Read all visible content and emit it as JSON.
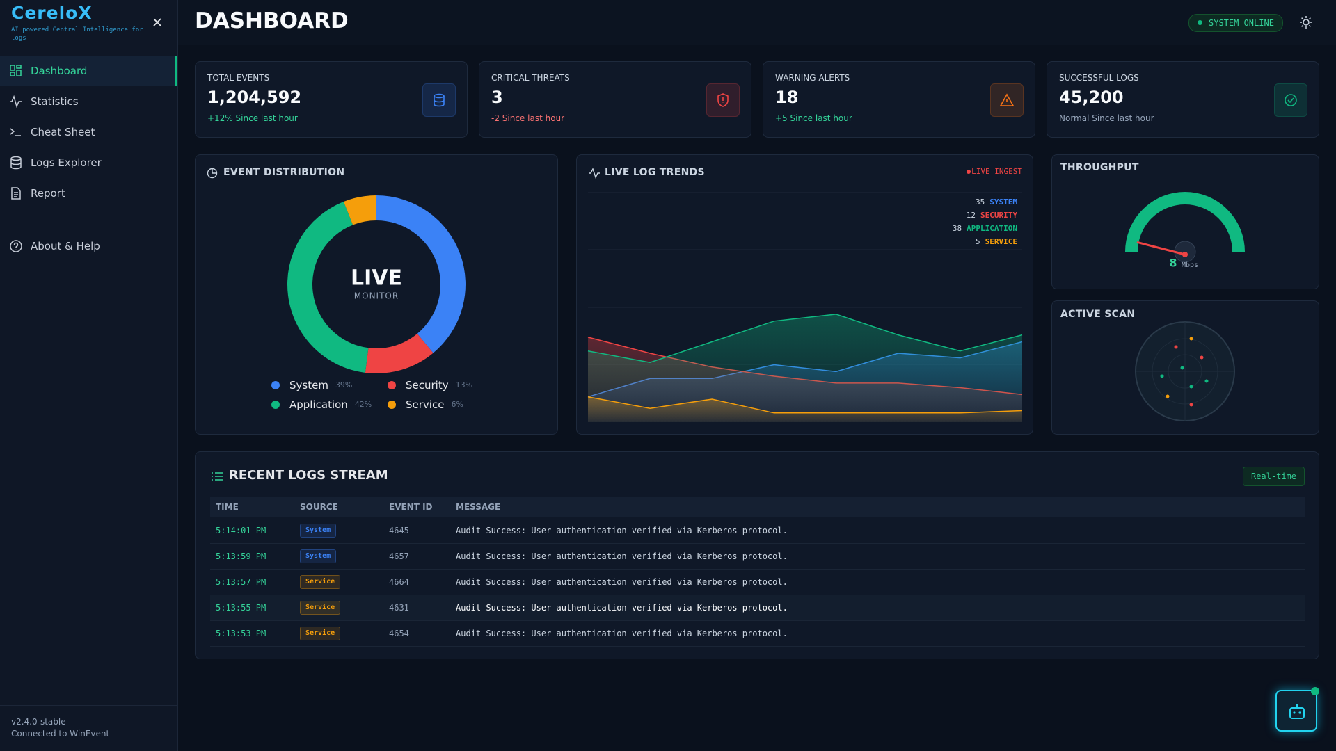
{
  "sidebar": {
    "brand": "CereloX",
    "tagline": "AI powered Central Intelligence for logs",
    "nav": [
      "Dashboard",
      "Statistics",
      "Cheat Sheet",
      "Logs Explorer",
      "Report"
    ],
    "help": "About & Help",
    "version": "v2.4.0-stable",
    "connection": "Connected to WinEvent"
  },
  "header": {
    "title": "DASHBOARD",
    "status": "SYSTEM ONLINE"
  },
  "cards": [
    {
      "label": "TOTAL EVENTS",
      "value": "1,204,592",
      "note": "+12% Since last hour",
      "note_color": "#34d399",
      "color": "#3b82f6"
    },
    {
      "label": "CRITICAL THREATS",
      "value": "3",
      "note": "-2 Since last hour",
      "note_color": "#f87171",
      "color": "#ef4444"
    },
    {
      "label": "WARNING ALERTS",
      "value": "18",
      "note": "+5 Since last hour",
      "note_color": "#34d399",
      "color": "#f97316"
    },
    {
      "label": "SUCCESSFUL LOGS",
      "value": "45,200",
      "note": "Normal Since last hour",
      "note_color": "#94a3b8",
      "color": "#10b981"
    }
  ],
  "event_distribution": {
    "type": "pie",
    "title": "EVENT DISTRIBUTION",
    "center": "LIVE",
    "center_sub": "MONITOR",
    "categories": [
      "System",
      "Security",
      "Application",
      "Service"
    ],
    "values": [
      39,
      13,
      42,
      6
    ],
    "value_labels": [
      "39%",
      "13%",
      "42%",
      "6%"
    ],
    "colors": [
      "#3b82f6",
      "#ef4444",
      "#10b981",
      "#f59e0b"
    ]
  },
  "live_trends": {
    "type": "area",
    "title": "LIVE LOG TRENDS",
    "badge": "LIVE INGEST",
    "categories": [
      null,
      null,
      null,
      null,
      null,
      null,
      null,
      null
    ],
    "ylim": [
      0,
      100
    ],
    "series": [
      {
        "name": "SYSTEM",
        "color": "#3b82f6",
        "values": [
          11,
          19,
          19,
          25,
          22,
          30,
          28,
          35
        ]
      },
      {
        "name": "SECURITY",
        "color": "#ef4444",
        "values": [
          37,
          30,
          24,
          20,
          17,
          17,
          15,
          12
        ]
      },
      {
        "name": "APPLICATION",
        "color": "#10b981",
        "values": [
          31,
          26,
          35,
          44,
          47,
          38,
          31,
          38
        ]
      },
      {
        "name": "SERVICE",
        "color": "#f59e0b",
        "values": [
          11,
          6,
          10,
          4,
          4,
          4,
          4,
          5
        ]
      }
    ]
  },
  "throughput": {
    "type": "gauge",
    "title": "THROUGHPUT",
    "value": 8,
    "unit": "Mbps",
    "ylim": [
      0,
      100
    ]
  },
  "active_scan": {
    "title": "ACTIVE SCAN"
  },
  "logs": {
    "title": "RECENT LOGS STREAM",
    "badge": "Real-time",
    "columns": [
      "TIME",
      "SOURCE",
      "EVENT ID",
      "MESSAGE"
    ],
    "rows": [
      {
        "time": "5:14:01 PM",
        "source": "System",
        "source_color": "#3b82f6",
        "event_id": "4645",
        "message": "Audit Success: User authentication verified via Kerberos protocol."
      },
      {
        "time": "5:13:59 PM",
        "source": "System",
        "source_color": "#3b82f6",
        "event_id": "4657",
        "message": "Audit Success: User authentication verified via Kerberos protocol."
      },
      {
        "time": "5:13:57 PM",
        "source": "Service",
        "source_color": "#f59e0b",
        "event_id": "4664",
        "message": "Audit Success: User authentication verified via Kerberos protocol."
      },
      {
        "time": "5:13:55 PM",
        "source": "Service",
        "source_color": "#f59e0b",
        "event_id": "4631",
        "message": "Audit Success: User authentication verified via Kerberos protocol."
      },
      {
        "time": "5:13:53 PM",
        "source": "Service",
        "source_color": "#f59e0b",
        "event_id": "4654",
        "message": "Audit Success: User authentication verified via Kerberos protocol."
      }
    ]
  }
}
